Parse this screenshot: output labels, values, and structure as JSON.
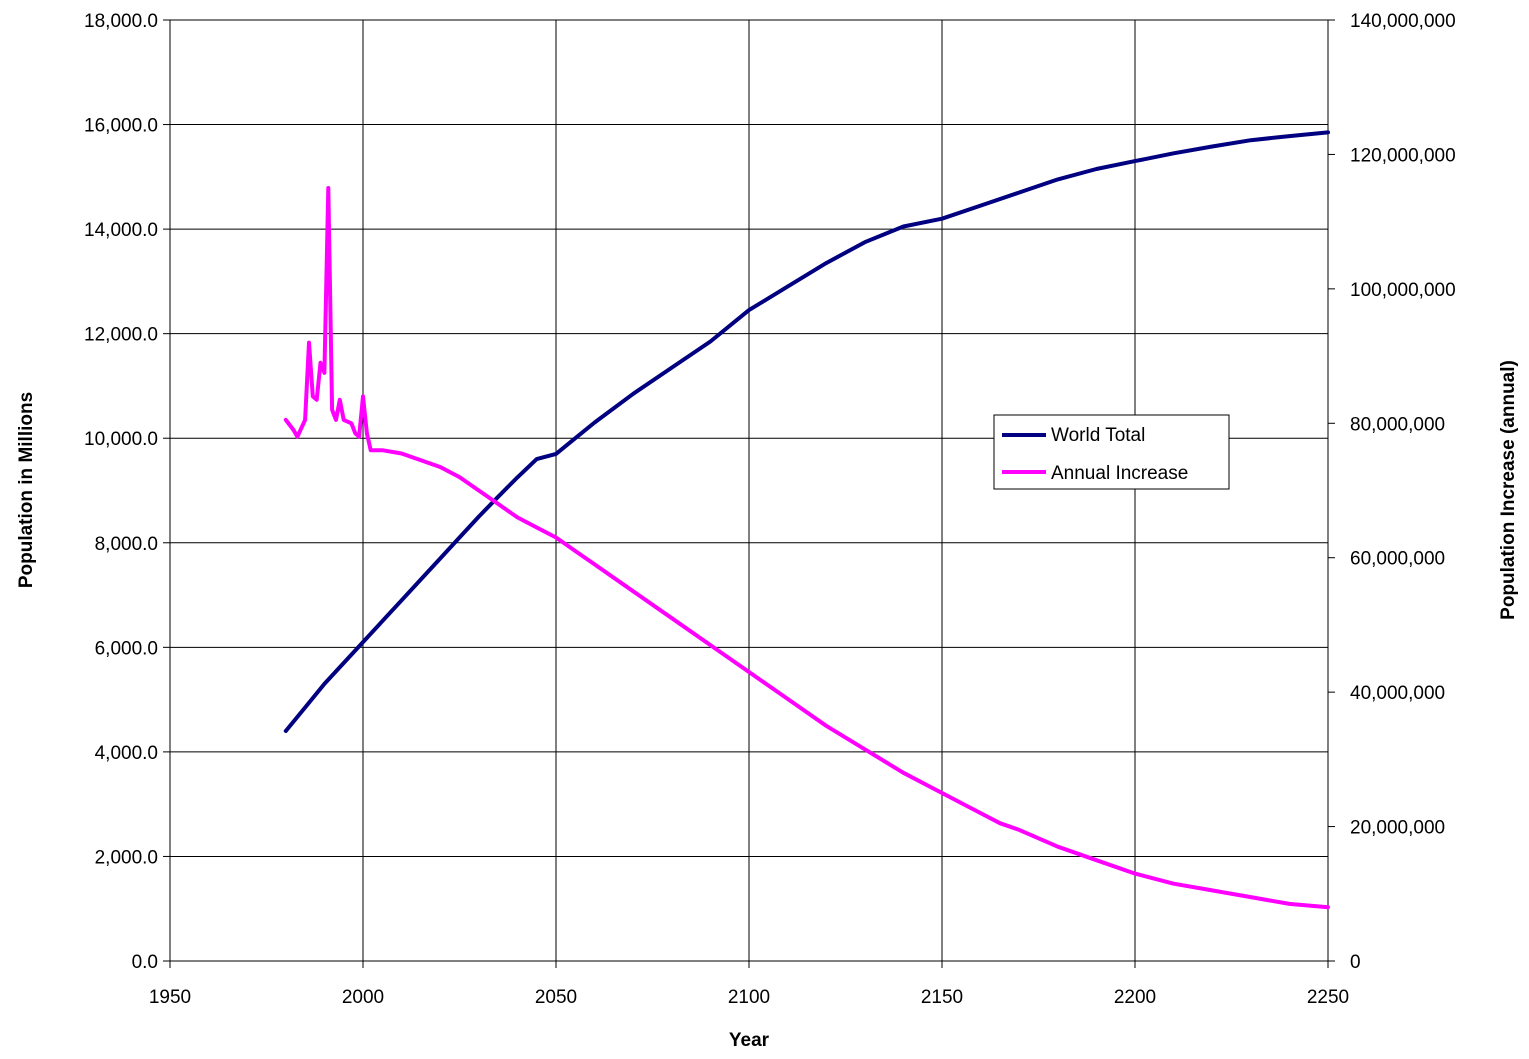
{
  "chart_data": {
    "type": "line",
    "title": "",
    "xlabel": "Year",
    "ylabel": "Population in Millions",
    "y2label": "Population Increase (annual)",
    "xlim": [
      1950,
      2250
    ],
    "ylim": [
      0,
      18000
    ],
    "y2lim": [
      0,
      140000000
    ],
    "x_ticks": [
      "1950",
      "2000",
      "2050",
      "2100",
      "2150",
      "2200",
      "2250"
    ],
    "x_tick_values": [
      1950,
      2000,
      2050,
      2100,
      2150,
      2200,
      2250
    ],
    "y_ticks": [
      "0.0",
      "2,000.0",
      "4,000.0",
      "6,000.0",
      "8,000.0",
      "10,000.0",
      "12,000.0",
      "14,000.0",
      "16,000.0",
      "18,000.0"
    ],
    "y_tick_values": [
      0,
      2000,
      4000,
      6000,
      8000,
      10000,
      12000,
      14000,
      16000,
      18000
    ],
    "y2_ticks": [
      "0",
      "20,000,000",
      "40,000,000",
      "60,000,000",
      "80,000,000",
      "100,000,000",
      "120,000,000",
      "140,000,000"
    ],
    "y2_tick_values": [
      0,
      20000000,
      40000000,
      60000000,
      80000000,
      100000000,
      120000000,
      140000000
    ],
    "grid": true,
    "legend_position": "center-right",
    "series": [
      {
        "name": "World Total",
        "axis": "left",
        "color": "#000080",
        "x": [
          1980,
          1985,
          1990,
          1995,
          2000,
          2005,
          2010,
          2015,
          2020,
          2025,
          2030,
          2035,
          2040,
          2045,
          2050,
          2055,
          2060,
          2070,
          2080,
          2090,
          2100,
          2110,
          2120,
          2130,
          2140,
          2150,
          2160,
          2170,
          2180,
          2190,
          2200,
          2210,
          2220,
          2230,
          2240,
          2250
        ],
        "y": [
          4400,
          4850,
          5300,
          5700,
          6100,
          6500,
          6900,
          7300,
          7700,
          8100,
          8500,
          8880,
          9250,
          9600,
          9700,
          10000,
          10300,
          10850,
          11350,
          11850,
          12450,
          12900,
          13350,
          13750,
          14050,
          14200,
          14450,
          14700,
          14950,
          15150,
          15300,
          15450,
          15580,
          15700,
          15780,
          15850
        ]
      },
      {
        "name": "Annual Increase",
        "axis": "right",
        "color": "#ff00ff",
        "x": [
          1980,
          1982,
          1983,
          1985,
          1986,
          1987,
          1988,
          1989,
          1990,
          1991,
          1992,
          1993,
          1994,
          1995,
          1997,
          1998,
          1999,
          2000,
          2001,
          2002,
          2005,
          2010,
          2015,
          2020,
          2025,
          2030,
          2035,
          2040,
          2045,
          2050,
          2055,
          2060,
          2070,
          2080,
          2090,
          2100,
          2110,
          2120,
          2130,
          2140,
          2150,
          2160,
          2165,
          2170,
          2180,
          2190,
          2200,
          2210,
          2220,
          2230,
          2240,
          2250
        ],
        "y": [
          80500000,
          79000000,
          78000000,
          80500000,
          92000000,
          84000000,
          83500000,
          89000000,
          87500000,
          115000000,
          82000000,
          80500000,
          83500000,
          80500000,
          80000000,
          78500000,
          78000000,
          84000000,
          78500000,
          76000000,
          76000000,
          75500000,
          74500000,
          73500000,
          72000000,
          70000000,
          68000000,
          66000000,
          64500000,
          63000000,
          61000000,
          59000000,
          55000000,
          51000000,
          47000000,
          43000000,
          39000000,
          35000000,
          31500000,
          28000000,
          25000000,
          22000000,
          20500000,
          19500000,
          17000000,
          15000000,
          13000000,
          11500000,
          10500000,
          9500000,
          8500000,
          8000000
        ]
      }
    ]
  }
}
